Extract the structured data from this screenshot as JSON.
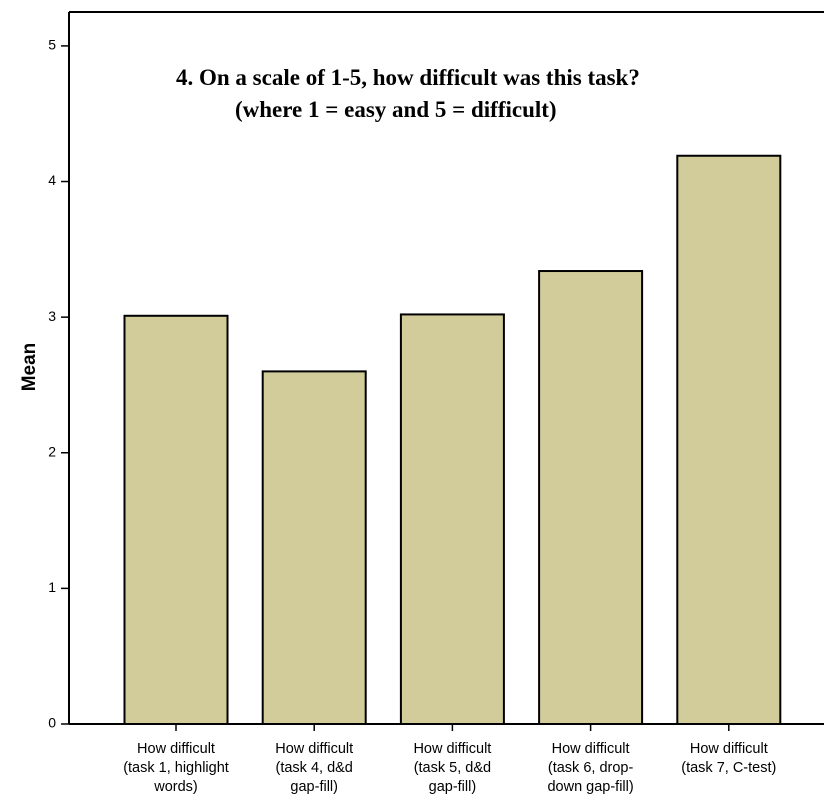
{
  "chart_data": {
    "type": "bar",
    "title_lines": [
      "4.    On a scale of 1-5, how difficult was this task?",
      "(where 1 = easy and 5 = difficult)"
    ],
    "xlabel": "",
    "ylabel": "Mean",
    "ylim": [
      0,
      5.25
    ],
    "yticks": [
      0,
      1,
      2,
      3,
      4,
      5
    ],
    "categories": [
      [
        "How difficult",
        "(task 1, highlight",
        "words)"
      ],
      [
        "How difficult",
        "(task 4, d&d",
        "gap-fill)"
      ],
      [
        "How difficult",
        "(task 5, d&d",
        "gap-fill)"
      ],
      [
        "How difficult",
        "(task 6, drop-",
        "down gap-fill)"
      ],
      [
        "How difficult",
        "(task 7, C-test)"
      ]
    ],
    "values": [
      3.01,
      2.6,
      3.02,
      3.34,
      4.19
    ],
    "bar_color": "#d1cc9a",
    "bar_edge_color": "#000000",
    "grid": false,
    "legend": "none"
  }
}
